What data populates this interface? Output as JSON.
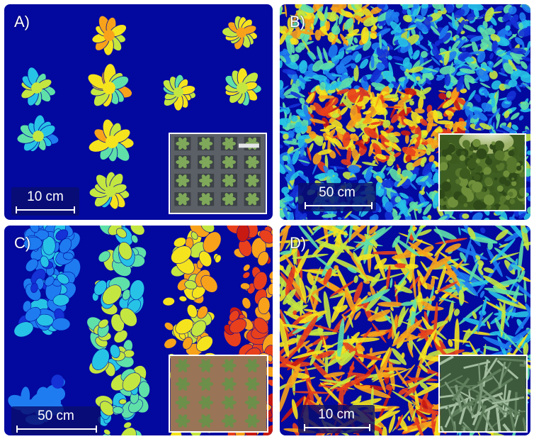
{
  "panels": {
    "a": {
      "label": "A)",
      "scale": "10 cm",
      "inset_icon": "potted-rosette-tray-photo"
    },
    "b": {
      "label": "B)",
      "scale": "50 cm",
      "inset_icon": "tree-canopy-photo"
    },
    "c": {
      "label": "C)",
      "scale": "50 cm",
      "inset_icon": "crop-rows-on-soil-photo"
    },
    "d": {
      "label": "D)",
      "scale": "10 cm",
      "inset_icon": "grass-canopy-photo"
    }
  },
  "colors": {
    "background": "#03099e",
    "colormap": [
      "#1432d6",
      "#1e7cf0",
      "#27c3e6",
      "#5fe0a8",
      "#c4e640",
      "#f5e31e",
      "#f7a21a",
      "#e8401c",
      "#c81a12"
    ]
  }
}
